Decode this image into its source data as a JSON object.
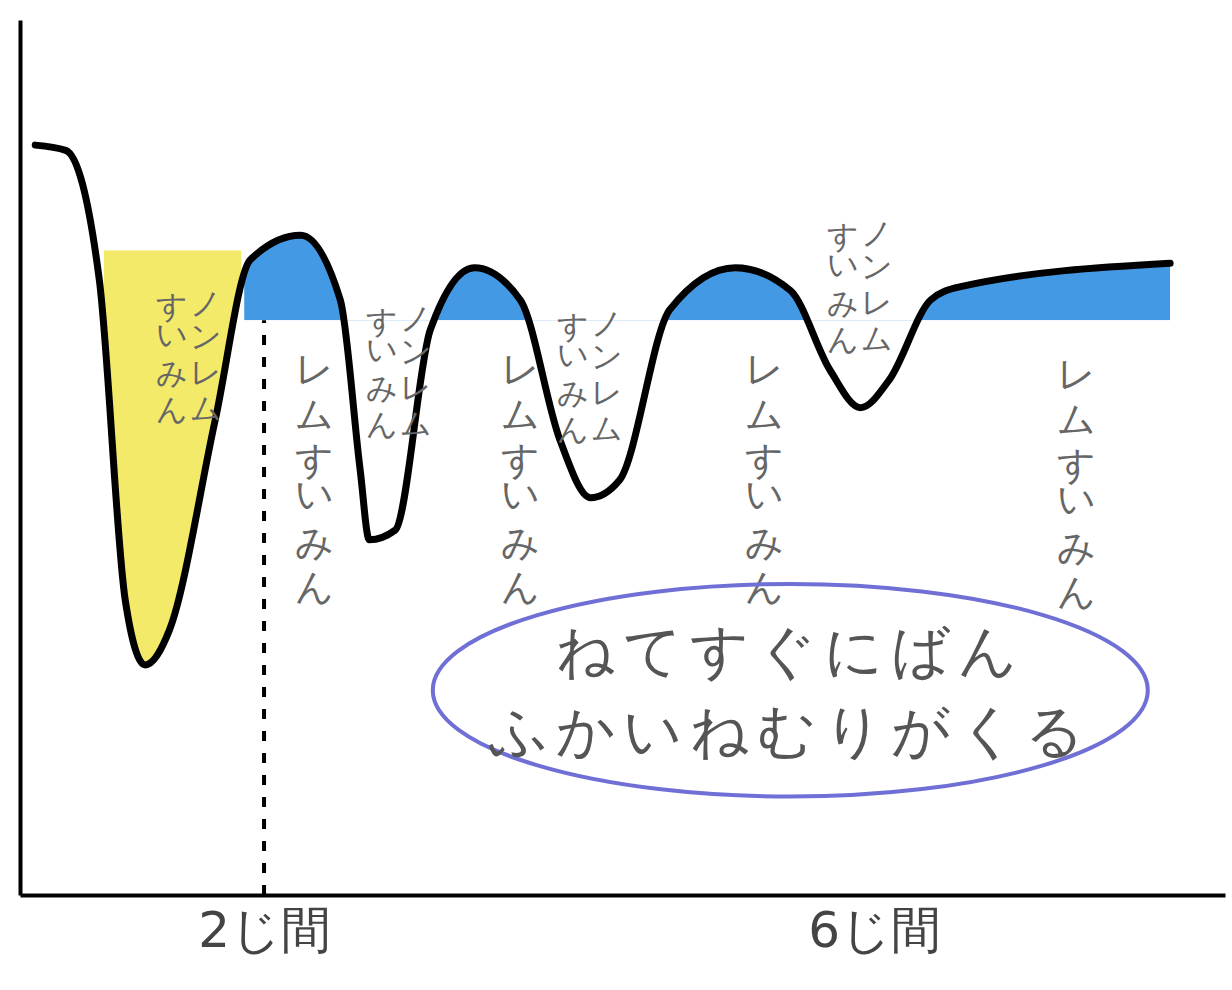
{
  "chart_data": {
    "type": "line",
    "x": [
      0.5,
      0.7,
      0.92,
      1.09,
      1.22,
      1.38,
      1.68,
      1.91,
      2.24,
      2.5,
      2.63,
      2.69,
      2.86,
      3.09,
      3.38,
      3.68,
      3.94,
      4.14,
      4.33,
      4.66,
      5.09,
      5.45,
      5.71,
      5.91,
      6.1,
      6.37,
      6.56,
      7.94
    ],
    "values": [
      85.7,
      85.1,
      70.3,
      33.7,
      26.3,
      30.3,
      54.3,
      72.6,
      75.4,
      68.0,
      48.6,
      40.6,
      41.7,
      64.6,
      71.7,
      68.0,
      52.0,
      45.4,
      47.4,
      66.9,
      71.7,
      69.1,
      60.0,
      55.7,
      58.9,
      68.0,
      69.5,
      72.2
    ],
    "color": "#000000",
    "xlim": [
      0.4,
      8.3
    ],
    "ylim": [
      0,
      100
    ],
    "xticks": [
      {
        "value": 2,
        "label": "2じ間"
      },
      {
        "value": 6,
        "label": "6じ間"
      }
    ],
    "tick_labels": "x",
    "shading": [
      {
        "color": "#f3e85a",
        "x_range": [
          0.95,
          1.85
        ],
        "level": 73.7
      },
      {
        "color": "#2f8ee0",
        "x_range": [
          1.87,
          7.94
        ],
        "level": 65.7
      }
    ],
    "marker_line": {
      "x": 2,
      "y": 65.7
    },
    "annotations": [
      {
        "lines": [
          "ノンレム",
          "すいみん"
        ],
        "x": 1.51,
        "y": 71.4
      },
      {
        "lines": [
          "レムすいみん"
        ],
        "x": 2.33,
        "y": 64.6
      },
      {
        "lines": [
          "ノンレム",
          "すいみん"
        ],
        "x": 2.89,
        "y": 69.7
      },
      {
        "lines": [
          "レムすいみん"
        ],
        "x": 3.68,
        "y": 64.6
      },
      {
        "lines": [
          "ノンレム",
          "すいみん"
        ],
        "x": 4.14,
        "y": 69.1
      },
      {
        "lines": [
          "レムすいみん"
        ],
        "x": 5.28,
        "y": 64.6
      },
      {
        "lines": [
          "ノンレム",
          "すいみん"
        ],
        "x": 5.91,
        "y": 79.4
      },
      {
        "lines": [
          "レムすいみん"
        ],
        "x": 7.32,
        "y": 64.0
      }
    ],
    "note": {
      "lines": [
        "ねてすぐにばん",
        "ふかいねむりがくる"
      ],
      "x": 5.45,
      "y": 23.4,
      "color": "#6f6fd6"
    }
  }
}
